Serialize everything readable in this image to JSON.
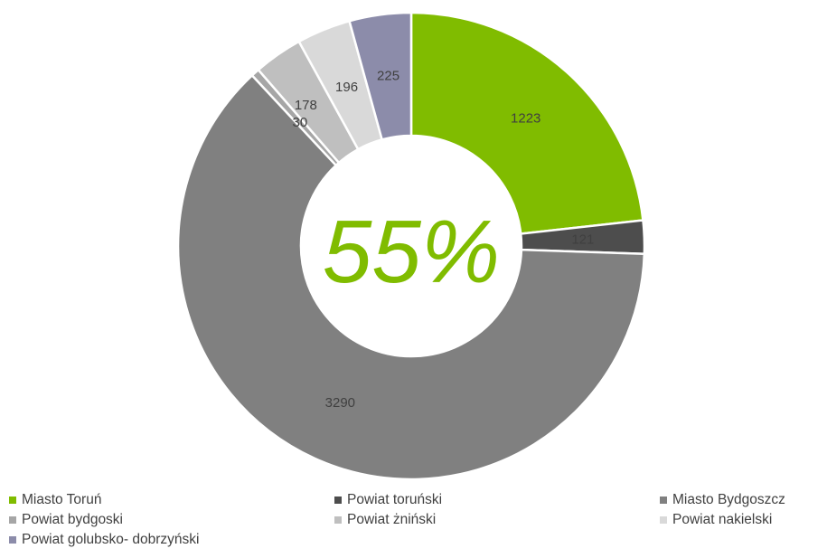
{
  "chart_data": {
    "type": "pie",
    "variant": "donut",
    "center_label": "55%",
    "slices": [
      {
        "name": "Miasto Toruń",
        "value": 1223,
        "color": "#80bc00"
      },
      {
        "name": "Powiat toruński",
        "value": 121,
        "color": "#4d4d4d"
      },
      {
        "name": "Miasto Bydgoszcz",
        "value": 3290,
        "color": "#808080"
      },
      {
        "name": "Powiat bydgoski",
        "value": 30,
        "color": "#a6a6a6"
      },
      {
        "name": "Powiat żniński",
        "value": 178,
        "color": "#bfbfbf"
      },
      {
        "name": "Powiat nakielski",
        "value": 196,
        "color": "#d9d9d9"
      },
      {
        "name": "Powiat golubsko- dobrzyński",
        "value": 225,
        "color": "#8c8caa"
      }
    ],
    "legend_position": "bottom"
  }
}
